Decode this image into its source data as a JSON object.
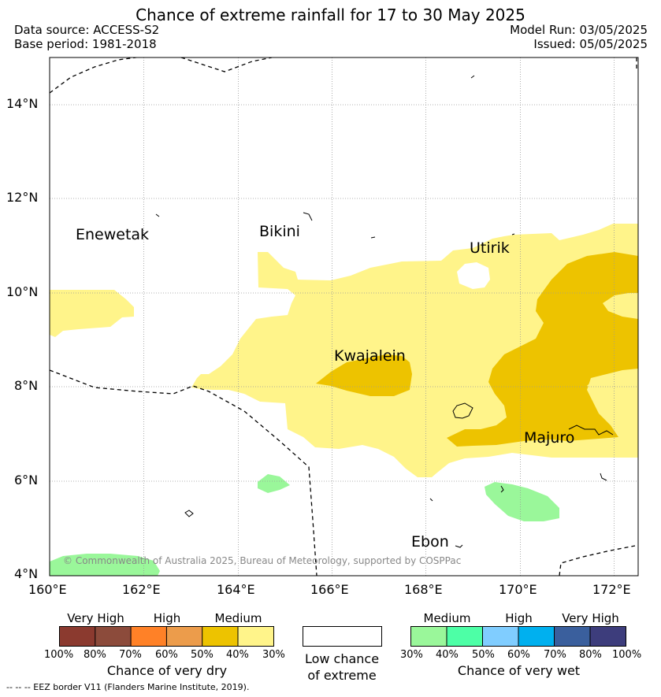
{
  "header": {
    "title": "Chance of extreme rainfall for 17 to 30 May 2025",
    "data_source": "Data source: ACCESS-S2",
    "base_period": "Base period: 1981-2018",
    "model_run": "Model Run: 03/05/2025",
    "issued": "Issued: 05/05/2025"
  },
  "map": {
    "lon_labels": [
      "160°E",
      "162°E",
      "164°E",
      "166°E",
      "168°E",
      "170°E",
      "172°E"
    ],
    "lat_labels": [
      "14°N",
      "12°N",
      "10°N",
      "8°N",
      "6°N",
      "4°N"
    ],
    "places": [
      "Enewetak",
      "Bikini",
      "Utirik",
      "Kwajalein",
      "Majuro",
      "Ebon"
    ],
    "copyright": "© Commonwealth of Australia 2025, Bureau of Meteorology, supported by COSPPac"
  },
  "legend": {
    "dry": {
      "heads": [
        "Very High",
        "High",
        "Medium"
      ],
      "colors": [
        "#8b3a2f",
        "#8c4b3b",
        "#ff8127",
        "#ec9c4b",
        "#edc300",
        "#fff48a"
      ],
      "ticks": [
        "100%",
        "80%",
        "70%",
        "60%",
        "50%",
        "40%",
        "30%"
      ],
      "title": "Chance of very dry"
    },
    "low": {
      "line1": "Low chance",
      "line2": "of extreme",
      "color": "#ffffff"
    },
    "wet": {
      "heads": [
        "Medium",
        "High",
        "Very High"
      ],
      "colors": [
        "#9af79a",
        "#4dffa6",
        "#80cdff",
        "#00b0ef",
        "#3a5f9d",
        "#3d3d7c"
      ],
      "ticks": [
        "30%",
        "40%",
        "50%",
        "60%",
        "70%",
        "80%",
        "100%"
      ],
      "title": "Chance of very wet"
    },
    "eez_note": "--  --  -- EEZ border V11 (Flanders Marine Institute, 2019)."
  }
}
